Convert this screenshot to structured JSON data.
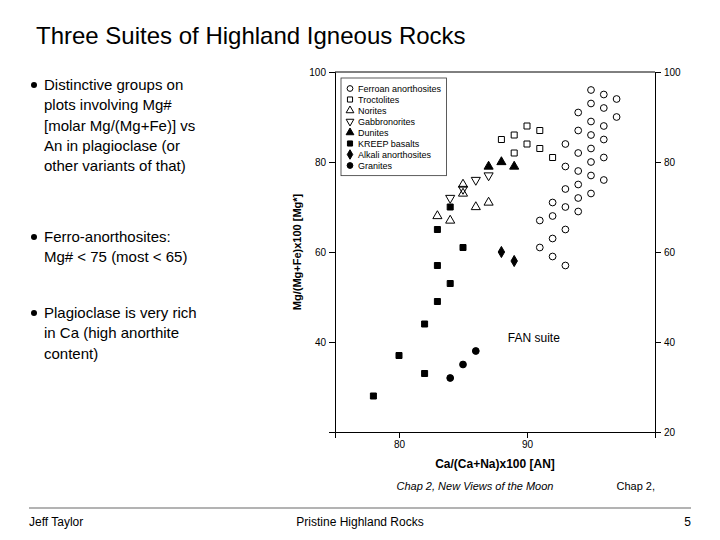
{
  "chart_data": {
    "type": "scatter",
    "title": "Three Suites of Highland Igneous Rocks",
    "xlabel": "Ca/(Ca+Na)x100 [AN]",
    "ylabel": "Mg/(Mg+Fe)x100 [Mg*]",
    "xlim": [
      75,
      100
    ],
    "ylim": [
      20,
      100
    ],
    "xticks": [
      80,
      90
    ],
    "yticks": [
      40,
      60,
      80,
      100
    ],
    "y2lim": [
      20,
      100
    ],
    "y2ticks": [
      20,
      40,
      60,
      80,
      100
    ],
    "grid": false,
    "legend": "upper left",
    "annotations": [
      {
        "text": "Distinctive groups on\nplots involving Mg#\n[molar Mg/(Mg+Fe)] vs\nAn in plagioclase (or\nother variants of that)"
      },
      {
        "text": "Ferro-anorthosites:\nMg# < 75 (most < 65)"
      },
      {
        "text": "Plagioclase is very rich\nin Ca (high anorthite\ncontent)"
      },
      {
        "text": "Chap 2, "
      },
      {
        "text": "Chap 2, New Views of the Moon"
      },
      {
        "text": "Jeff Taylor"
      },
      {
        "text": "Pristine Highland Rocks"
      },
      {
        "text": "5"
      },
      {
        "text": "FAN suite",
        "x": 88.5,
        "y": 41
      }
    ],
    "series": [
      {
        "name": "Ferroan anorthosites",
        "color": "black",
        "marker": "circle-open",
        "x": [
          95,
          96,
          97,
          95,
          96,
          94,
          97,
          95,
          96,
          94,
          95,
          96,
          93,
          95,
          94,
          96,
          95,
          93,
          94,
          95,
          96,
          94,
          93,
          95,
          94,
          92,
          93,
          94,
          92,
          91,
          93,
          92,
          91,
          92,
          93
        ],
        "values": [
          96,
          95,
          94,
          93,
          92,
          91,
          90,
          89,
          88,
          87,
          86,
          85,
          84,
          83,
          82,
          81,
          80,
          79,
          78,
          77,
          76,
          75,
          74,
          73,
          72,
          71,
          70,
          69,
          68,
          67,
          65,
          63,
          61,
          59,
          57
        ]
      },
      {
        "name": "Troctolites",
        "color": "black",
        "marker": "square-open",
        "x": [
          90,
          91,
          89,
          88,
          90,
          91,
          89,
          92
        ],
        "values": [
          88,
          87,
          86,
          85,
          84,
          83,
          82,
          81
        ]
      },
      {
        "name": "Norites",
        "color": "black",
        "marker": "triangle-up-open",
        "x": [
          85,
          86,
          84,
          87,
          85,
          83
        ],
        "values": [
          73,
          70,
          67,
          71,
          75,
          68
        ]
      },
      {
        "name": "Gabbronorites",
        "color": "black",
        "marker": "triangle-down-open",
        "x": [
          87,
          86,
          85,
          84
        ],
        "values": [
          77,
          76,
          74,
          72
        ]
      },
      {
        "name": "Dunites",
        "color": "black",
        "marker": "triangle-up",
        "x": [
          87,
          88,
          89
        ],
        "values": [
          79,
          80,
          79
        ]
      },
      {
        "name": "KREEP basalts",
        "color": "black",
        "marker": "square",
        "x": [
          84,
          83,
          85,
          83,
          84,
          83,
          82,
          80,
          82,
          78
        ],
        "values": [
          70,
          65,
          61,
          57,
          53,
          49,
          44,
          37,
          33,
          28
        ]
      },
      {
        "name": "Alkali anorthosites",
        "color": "black",
        "marker": "diamond",
        "x": [
          88,
          89
        ],
        "values": [
          60,
          58
        ]
      },
      {
        "name": "Granites",
        "color": "black",
        "marker": "circle",
        "x": [
          85,
          84,
          86
        ],
        "values": [
          35,
          32,
          38
        ]
      }
    ]
  }
}
